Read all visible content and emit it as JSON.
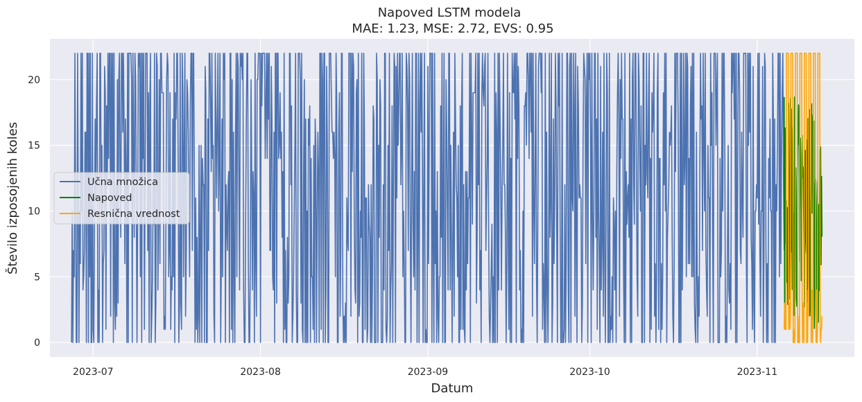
{
  "chart_data": {
    "type": "line",
    "title": "Napoved LSTM modela",
    "subtitle": "MAE: 1.23, MSE: 2.72, EVS: 0.95",
    "xlabel": "Datum",
    "ylabel": "Število izposojenih koles",
    "x_range": [
      "2023-06-23",
      "2023-11-19"
    ],
    "ylim": [
      -1.1,
      23.1
    ],
    "x_ticks": [
      {
        "date": "2023-07-01",
        "label": "2023-07"
      },
      {
        "date": "2023-08-01",
        "label": "2023-08"
      },
      {
        "date": "2023-09-01",
        "label": "2023-09"
      },
      {
        "date": "2023-10-01",
        "label": "2023-10"
      },
      {
        "date": "2023-11-01",
        "label": "2023-11"
      }
    ],
    "y_ticks": [
      0,
      5,
      10,
      15,
      20
    ],
    "grid": true,
    "legend_position": "center-left",
    "series": [
      {
        "name": "Učna množica",
        "color": "#4c72b0",
        "segments": [
          {
            "from": "2023-06-27",
            "to": "2023-06-29",
            "value": 22
          },
          {
            "from": "2023-06-29",
            "to": "2023-07-01",
            "value": 21
          },
          {
            "from": "2023-07-01",
            "to": "2023-07-03",
            "value": 20
          },
          {
            "from": "2023-07-03",
            "to": "2023-07-15",
            "value": 22
          },
          {
            "from": "2023-07-15",
            "to": "2023-07-28",
            "value": 22
          },
          {
            "from": "2023-07-28",
            "to": "2023-08-08",
            "value": 22
          },
          {
            "from": "2023-08-08",
            "to": "2023-09-01",
            "value": 22
          },
          {
            "from": "2023-09-01",
            "to": "2023-10-01",
            "value": 22
          },
          {
            "from": "2023-10-01",
            "to": "2023-11-01",
            "value": 22
          },
          {
            "from": "2023-11-01",
            "to": "2023-11-06",
            "value": 22
          }
        ],
        "min": 0,
        "max": 22
      },
      {
        "name": "Napoved",
        "color": "#008000",
        "segments": [
          {
            "from": "2023-11-06",
            "to": "2023-11-13",
            "value": 17
          }
        ],
        "min": 1,
        "max": 19
      },
      {
        "name": "Resnična vrednost",
        "color": "#ffa500",
        "segments": [
          {
            "from": "2023-11-06",
            "to": "2023-11-13",
            "value": 22
          }
        ],
        "min": 0,
        "max": 22
      }
    ]
  }
}
